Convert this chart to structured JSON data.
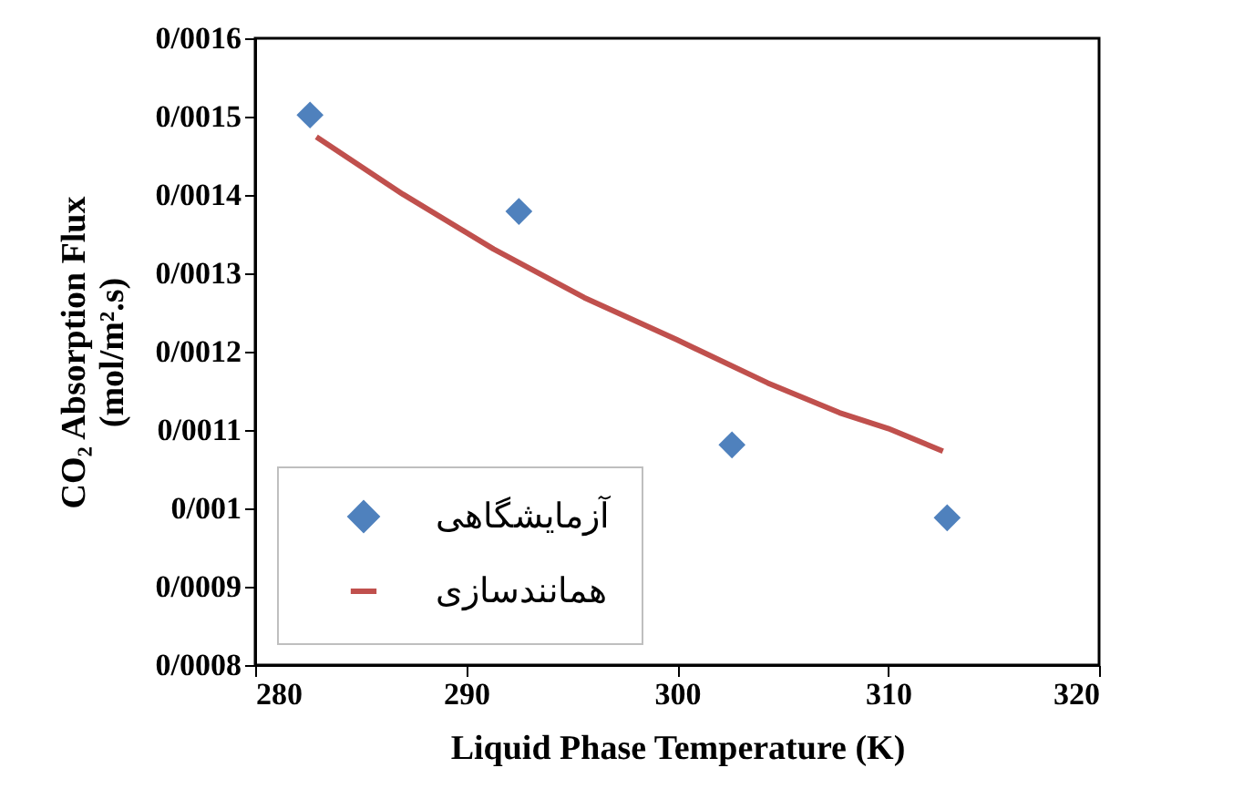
{
  "chart_data": {
    "type": "scatter",
    "xlabel": "Liquid Phase Temperature (K)",
    "ylabel": "CO₂ Absorption Flux\n(mol/m².s)",
    "xlim": [
      280,
      320
    ],
    "xticks": [
      280,
      290,
      300,
      310,
      320
    ],
    "ylim": [
      0.0008,
      0.0016
    ],
    "yticks": [
      {
        "value": 0.0008,
        "label": "0/0008"
      },
      {
        "value": 0.0009,
        "label": "0/0009"
      },
      {
        "value": 0.001,
        "label": "0/001"
      },
      {
        "value": 0.0011,
        "label": "0/0011"
      },
      {
        "value": 0.0012,
        "label": "0/0012"
      },
      {
        "value": 0.0013,
        "label": "0/0013"
      },
      {
        "value": 0.0014,
        "label": "0/0014"
      },
      {
        "value": 0.0015,
        "label": "0/0015"
      },
      {
        "value": 0.0016,
        "label": "0/0016"
      }
    ],
    "grid": false,
    "legend": "bottom left",
    "series": [
      {
        "name": "آزمایشگاهی",
        "marker": "diamond",
        "color": "#4f81bd",
        "x": [
          282.6,
          292.5,
          302.6,
          312.8
        ],
        "values": [
          0.001502,
          0.001379,
          0.001081,
          0.000988
        ]
      },
      {
        "name": "همانندسازی",
        "type": "line",
        "marker": "none",
        "line_style": "solid",
        "color": "#c0504d",
        "x": [
          282.9,
          287.0,
          291.3,
          295.6,
          300.0,
          304.3,
          307.7,
          310.0,
          312.6
        ],
        "values": [
          0.001474,
          0.001401,
          0.001331,
          0.001269,
          0.001215,
          0.00116,
          0.001122,
          0.001102,
          0.001073
        ]
      }
    ]
  }
}
